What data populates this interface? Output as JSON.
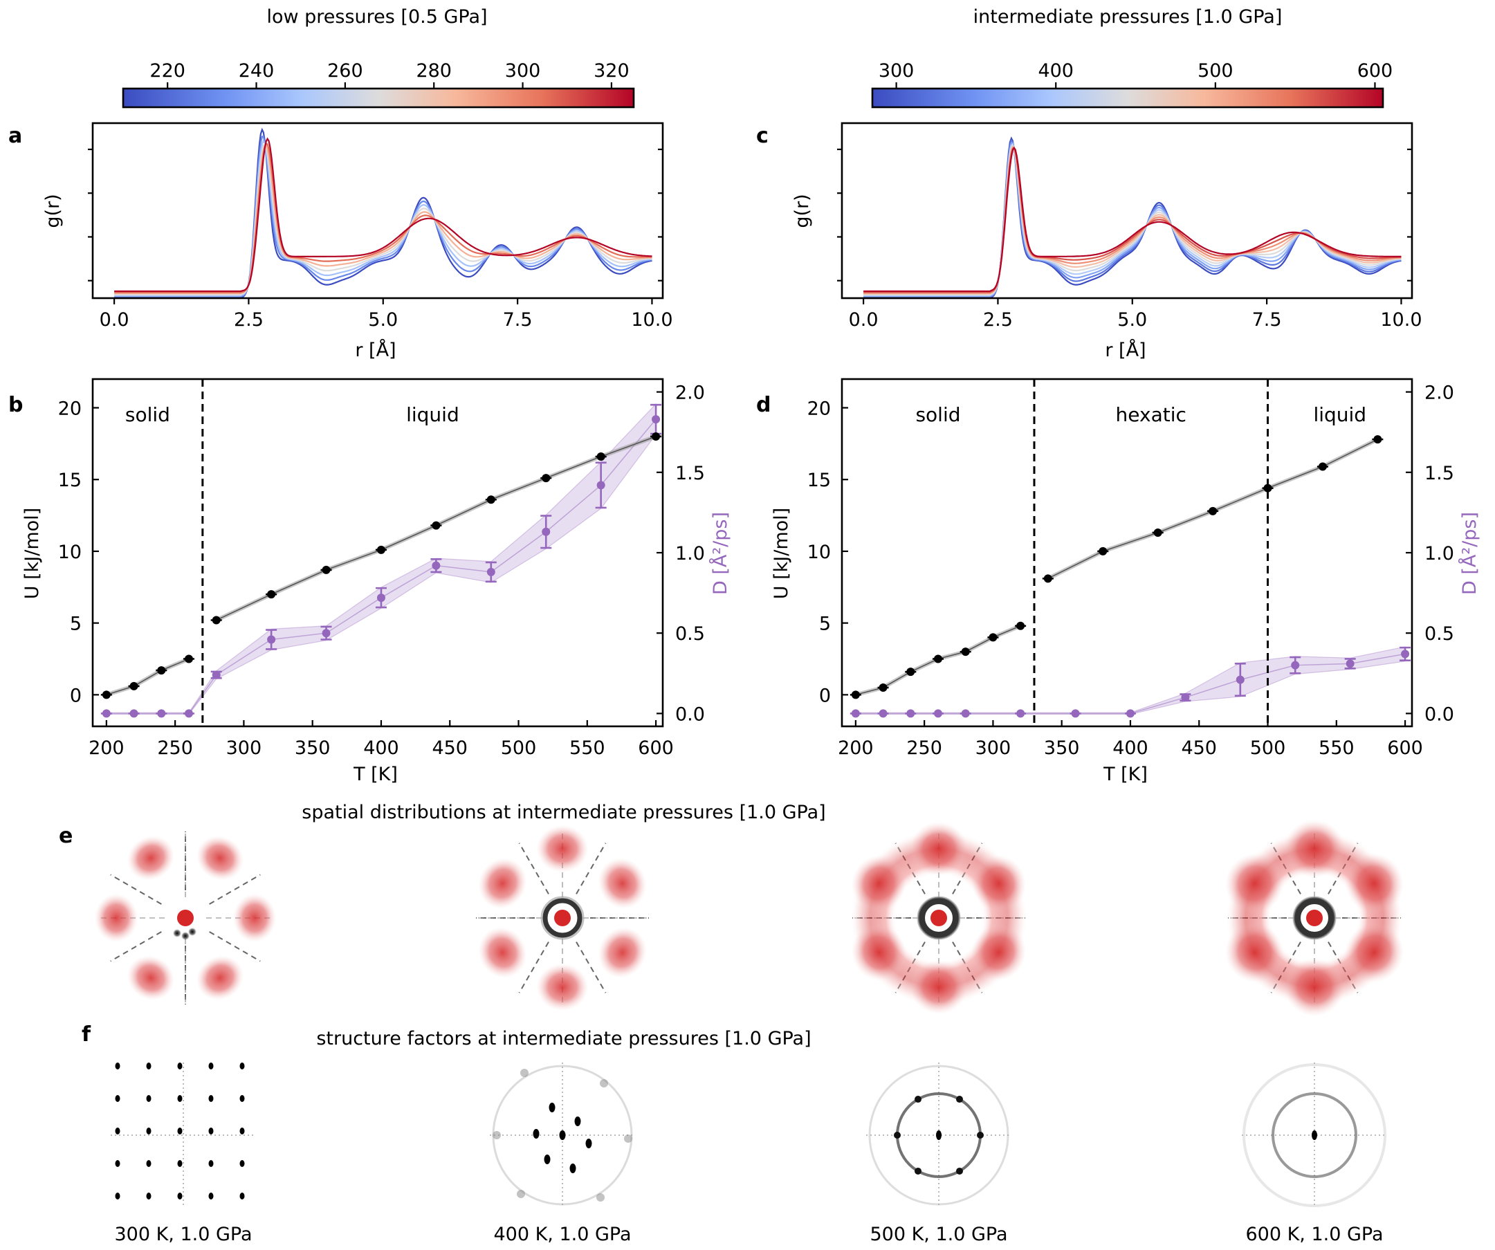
{
  "colors": {
    "cool": "#3b4cc0",
    "neutral": "#dddddd",
    "warm": "#b40426",
    "diffusion": "#9467bd",
    "energy": "#000000",
    "density": "#d62728"
  },
  "headers": {
    "left": "low pressures [0.5 GPa]",
    "right": "intermediate pressures [1.0  GPa]",
    "spatial": "spatial distributions at intermediate pressures [1.0 GPa]",
    "structure": "structure factors at intermediate pressures [1.0 GPa]"
  },
  "panel_labels": {
    "a": "a",
    "b": "b",
    "c": "c",
    "d": "d",
    "e": "e",
    "f": "f"
  },
  "colorbars": {
    "left": {
      "ticks": [
        "220",
        "240",
        "260",
        "280",
        "300",
        "320"
      ],
      "range": [
        210,
        325
      ]
    },
    "right": {
      "ticks": [
        "300",
        "400",
        "500",
        "600"
      ],
      "range": [
        285,
        605
      ]
    }
  },
  "chart_data": [
    {
      "id": "a",
      "type": "line",
      "ylabel": "g(r)",
      "xlabel": "r [Å]",
      "xticks": [
        "0.0",
        "2.5",
        "5.0",
        "7.5",
        "10.0"
      ],
      "xlim": [
        -0.4,
        10.2
      ],
      "temperature_range": [
        220,
        320
      ],
      "n_curves": 7,
      "peaks_cold": [
        [
          2.75,
          1.0
        ],
        [
          5.75,
          0.6
        ],
        [
          7.2,
          0.34
        ],
        [
          8.6,
          0.43
        ]
      ],
      "peaks_hot": [
        [
          2.85,
          0.92
        ],
        [
          5.85,
          0.46
        ],
        [
          8.6,
          0.35
        ]
      ]
    },
    {
      "id": "b",
      "type": "line",
      "xlabel": "T [K]",
      "ylabel": "U [kJ/mol]",
      "ylabel_right": "D [Å²/ps]",
      "xlim": [
        190,
        605
      ],
      "ylim": [
        -2.2,
        22
      ],
      "ylim_right": [
        -0.08,
        2.08
      ],
      "xticks": [
        "200",
        "250",
        "300",
        "350",
        "400",
        "450",
        "500",
        "550",
        "600"
      ],
      "yticks": [
        "0",
        "5",
        "10",
        "15",
        "20"
      ],
      "yticks_right": [
        "0.0",
        "0.5",
        "1.0",
        "1.5",
        "2.0"
      ],
      "phase_boundaries": [
        270
      ],
      "phase_labels": [
        "solid",
        "liquid"
      ],
      "series": [
        {
          "axis": "left",
          "x": [
            200,
            220,
            240,
            260,
            280,
            320,
            360,
            400,
            440,
            480,
            520,
            560,
            600
          ],
          "values": [
            0.0,
            0.6,
            1.7,
            2.5,
            5.2,
            7.0,
            8.7,
            10.1,
            11.8,
            13.6,
            15.1,
            16.6,
            18.0
          ]
        },
        {
          "axis": "right",
          "x": [
            200,
            220,
            240,
            260,
            280,
            320,
            360,
            400,
            440,
            480,
            520,
            560,
            600
          ],
          "values": [
            0.0,
            0.0,
            0.0,
            0.0,
            0.24,
            0.46,
            0.5,
            0.72,
            0.92,
            0.88,
            1.13,
            1.42,
            1.83
          ],
          "errors": [
            0.0,
            0.0,
            0.0,
            0.0,
            0.02,
            0.06,
            0.04,
            0.06,
            0.04,
            0.06,
            0.1,
            0.14,
            0.09
          ]
        }
      ]
    },
    {
      "id": "c",
      "type": "line",
      "ylabel": "g(r)",
      "xlabel": "r [Å]",
      "xticks": [
        "0.0",
        "2.5",
        "5.0",
        "7.5",
        "10.0"
      ],
      "xlim": [
        -0.4,
        10.2
      ],
      "temperature_range": [
        300,
        600
      ],
      "n_curves": 9,
      "peaks_cold": [
        [
          2.75,
          0.95
        ],
        [
          4.9,
          0.27
        ],
        [
          5.5,
          0.57
        ],
        [
          6.9,
          0.3
        ],
        [
          8.2,
          0.42
        ]
      ],
      "peaks_hot": [
        [
          2.8,
          0.87
        ],
        [
          5.5,
          0.44
        ],
        [
          8.0,
          0.38
        ]
      ]
    },
    {
      "id": "d",
      "type": "line",
      "xlabel": "T [K]",
      "ylabel": "U [kJ/mol]",
      "ylabel_right": "D [Å²/ps]",
      "xlim": [
        190,
        605
      ],
      "ylim": [
        -2.2,
        22
      ],
      "ylim_right": [
        -0.08,
        2.08
      ],
      "xticks": [
        "200",
        "250",
        "300",
        "350",
        "400",
        "450",
        "500",
        "550",
        "600"
      ],
      "yticks": [
        "0",
        "5",
        "10",
        "15",
        "20"
      ],
      "yticks_right": [
        "0.0",
        "0.5",
        "1.0",
        "1.5",
        "2.0"
      ],
      "phase_boundaries": [
        330,
        500
      ],
      "phase_labels": [
        "solid",
        "hexatic",
        "liquid"
      ],
      "series": [
        {
          "axis": "left",
          "x": [
            200,
            220,
            240,
            260,
            280,
            300,
            320,
            340,
            380,
            420,
            460,
            500,
            540,
            580
          ],
          "values": [
            0.0,
            0.5,
            1.6,
            2.5,
            3.0,
            4.0,
            4.8,
            8.1,
            10.0,
            11.3,
            12.8,
            14.4,
            15.9,
            17.8
          ]
        },
        {
          "axis": "right",
          "x": [
            200,
            220,
            240,
            260,
            280,
            320,
            360,
            400,
            440,
            480,
            520,
            560,
            600
          ],
          "values": [
            0.0,
            0.0,
            0.0,
            0.0,
            0.0,
            0.0,
            0.0,
            0.0,
            0.1,
            0.21,
            0.3,
            0.31,
            0.37
          ],
          "errors": [
            0.0,
            0.0,
            0.0,
            0.0,
            0.0,
            0.0,
            0.0,
            0.0,
            0.02,
            0.1,
            0.05,
            0.03,
            0.04
          ]
        }
      ]
    }
  ],
  "spatial_maps": [
    {
      "temperature": "300 K",
      "center_ring": "partial",
      "smear": 0.1
    },
    {
      "temperature": "400 K",
      "center_ring": "sharp",
      "smear": 0.35
    },
    {
      "temperature": "500 K",
      "center_ring": "full",
      "smear": 0.75
    },
    {
      "temperature": "600 K",
      "center_ring": "full",
      "smear": 1.0
    }
  ],
  "structure_factors": [
    {
      "label": "300 K, 1.0 GPa",
      "pattern": "square-lattice"
    },
    {
      "label": "400 K, 1.0 GPa",
      "pattern": "hexagonal-spots"
    },
    {
      "label": "500 K, 1.0 GPa",
      "pattern": "ring-with-spots"
    },
    {
      "label": "600 K, 1.0 GPa",
      "pattern": "ring"
    }
  ]
}
